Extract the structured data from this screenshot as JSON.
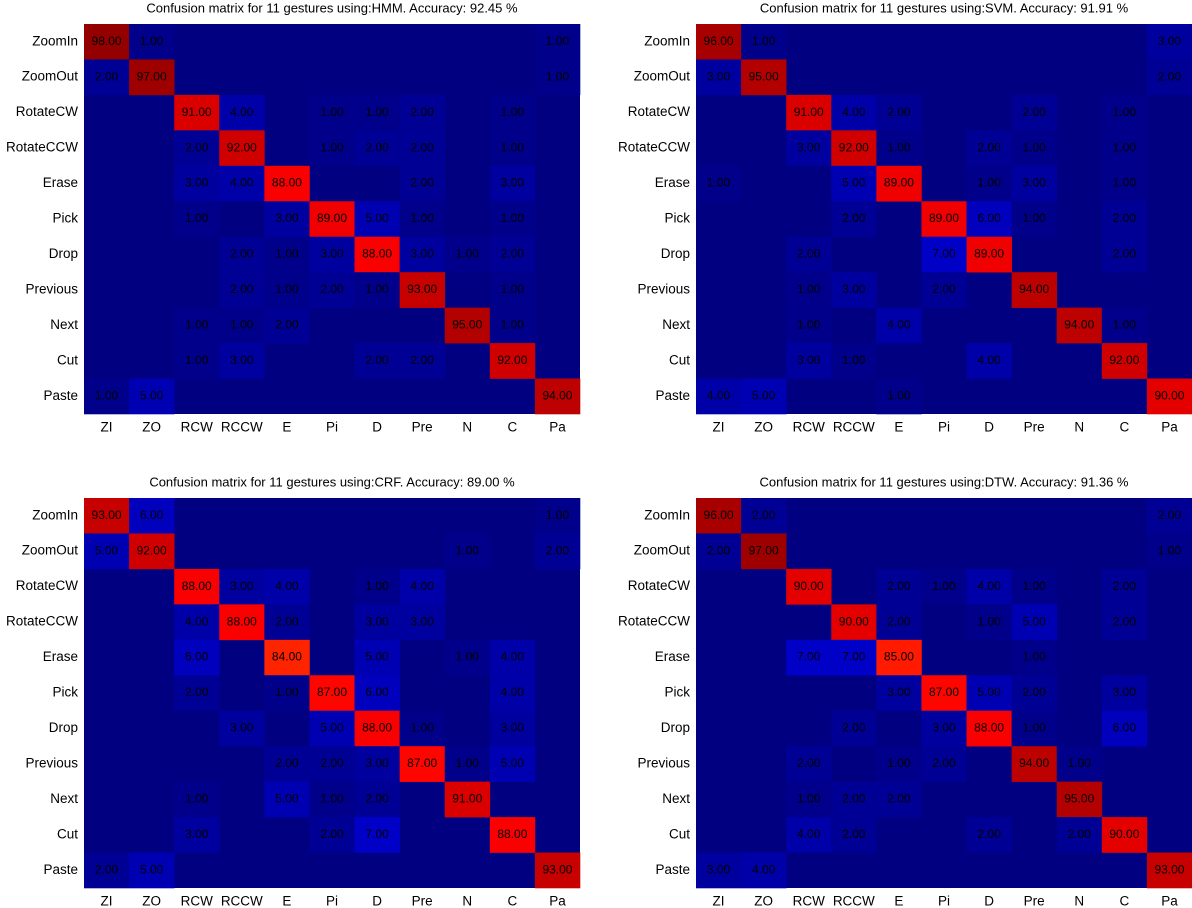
{
  "chart_data": [
    {
      "type": "heatmap",
      "title": "Confusion matrix for 11 gestures using:HMM. Accuracy: 92.45 %",
      "x_categories": [
        "ZI",
        "ZO",
        "RCW",
        "RCCW",
        "E",
        "Pi",
        "D",
        "Pre",
        "N",
        "C",
        "Pa"
      ],
      "y_categories": [
        "ZoomIn",
        "ZoomOut",
        "RotateCW",
        "RotateCCW",
        "Erase",
        "Pick",
        "Drop",
        "Previous",
        "Next",
        "Cut",
        "Paste"
      ],
      "colormap": "jet",
      "clim": [
        0,
        100
      ],
      "values": [
        [
          98,
          1,
          null,
          null,
          null,
          null,
          null,
          null,
          null,
          null,
          1
        ],
        [
          2,
          97,
          null,
          null,
          null,
          null,
          null,
          null,
          null,
          null,
          1
        ],
        [
          null,
          null,
          91,
          4,
          null,
          1,
          1,
          2,
          null,
          1,
          null
        ],
        [
          null,
          null,
          2,
          92,
          null,
          1,
          2,
          2,
          null,
          1,
          null
        ],
        [
          null,
          null,
          3,
          4,
          88,
          null,
          null,
          2,
          null,
          3,
          null
        ],
        [
          null,
          null,
          1,
          null,
          3,
          89,
          5,
          1,
          null,
          1,
          null
        ],
        [
          null,
          null,
          null,
          2,
          1,
          3,
          88,
          3,
          1,
          2,
          null
        ],
        [
          null,
          null,
          null,
          2,
          1,
          2,
          1,
          93,
          null,
          1,
          null
        ],
        [
          null,
          null,
          1,
          1,
          2,
          null,
          null,
          null,
          95,
          1,
          null
        ],
        [
          null,
          null,
          1,
          3,
          null,
          null,
          2,
          2,
          null,
          92,
          null
        ],
        [
          1,
          5,
          null,
          null,
          null,
          null,
          null,
          null,
          null,
          null,
          94
        ]
      ],
      "value_labels": [
        [
          "98.00",
          "1.00",
          null,
          null,
          null,
          null,
          null,
          null,
          null,
          null,
          "1.00"
        ],
        [
          "2.00",
          "97.00",
          null,
          null,
          null,
          null,
          null,
          null,
          null,
          null,
          "1.00"
        ],
        [
          null,
          null,
          "91.00",
          "4.00",
          null,
          "1.00",
          "1.00",
          "2.00",
          null,
          "1.00",
          null
        ],
        [
          null,
          null,
          "2.00",
          "92.00",
          null,
          "1.00",
          "2.00",
          "2.00",
          null,
          "1.00",
          null
        ],
        [
          null,
          null,
          "3.00",
          "4.00",
          "88.00",
          null,
          null,
          "2.00",
          null,
          "3.00",
          null
        ],
        [
          null,
          null,
          "1.00",
          null,
          "3.00",
          "89.00",
          "5.00",
          "1.00",
          null,
          "1.00",
          null
        ],
        [
          null,
          null,
          null,
          "2.00",
          "1.00",
          "3.00",
          "88.00",
          "3.00",
          "1.00",
          "2.00",
          null
        ],
        [
          null,
          null,
          null,
          "2.00",
          "1.00",
          "2.00",
          "1.00",
          "93.00",
          null,
          "1.00",
          null
        ],
        [
          null,
          null,
          "1.00",
          "1.00",
          "2.00",
          null,
          null,
          null,
          "95.00",
          "1.00",
          null
        ],
        [
          null,
          null,
          "1.00",
          "3.00",
          null,
          null,
          "2.00",
          "2.00",
          null,
          "92.00",
          null
        ],
        [
          "1.00",
          "5.00",
          null,
          null,
          null,
          null,
          null,
          null,
          null,
          null,
          "94.00"
        ]
      ]
    },
    {
      "type": "heatmap",
      "title": "Confusion matrix for 11 gestures using:SVM. Accuracy: 91.91 %",
      "x_categories": [
        "ZI",
        "ZO",
        "RCW",
        "RCCW",
        "E",
        "Pi",
        "D",
        "Pre",
        "N",
        "C",
        "Pa"
      ],
      "y_categories": [
        "ZoomIn",
        "ZoomOut",
        "RotateCW",
        "RotateCCW",
        "Erase",
        "Pick",
        "Drop",
        "Previous",
        "Next",
        "Cut",
        "Paste"
      ],
      "colormap": "jet",
      "clim": [
        0,
        100
      ],
      "values": [
        [
          96,
          1,
          null,
          null,
          null,
          null,
          null,
          null,
          null,
          null,
          3
        ],
        [
          3,
          95,
          null,
          null,
          null,
          null,
          null,
          null,
          null,
          null,
          2
        ],
        [
          null,
          null,
          91,
          4,
          2,
          null,
          null,
          2,
          null,
          1,
          null
        ],
        [
          null,
          null,
          3,
          92,
          1,
          null,
          2,
          1,
          null,
          1,
          null
        ],
        [
          1,
          null,
          null,
          5,
          89,
          null,
          1,
          3,
          null,
          1,
          null
        ],
        [
          null,
          null,
          null,
          2,
          null,
          89,
          6,
          1,
          null,
          2,
          null
        ],
        [
          null,
          null,
          2,
          null,
          null,
          7,
          89,
          null,
          null,
          2,
          null
        ],
        [
          null,
          null,
          1,
          3,
          null,
          2,
          null,
          94,
          null,
          null,
          null
        ],
        [
          null,
          null,
          1,
          null,
          4,
          null,
          null,
          null,
          94,
          1,
          null
        ],
        [
          null,
          null,
          3,
          1,
          null,
          null,
          4,
          null,
          null,
          92,
          null
        ],
        [
          4,
          5,
          null,
          null,
          1,
          null,
          null,
          null,
          null,
          null,
          90
        ]
      ],
      "value_labels": [
        [
          "96.00",
          "1.00",
          null,
          null,
          null,
          null,
          null,
          null,
          null,
          null,
          "3.00"
        ],
        [
          "3.00",
          "95.00",
          null,
          null,
          null,
          null,
          null,
          null,
          null,
          null,
          "2.00"
        ],
        [
          null,
          null,
          "91.00",
          "4.00",
          "2.00",
          null,
          null,
          "2.00",
          null,
          "1.00",
          null
        ],
        [
          null,
          null,
          "3.00",
          "92.00",
          "1.00",
          null,
          "2.00",
          "1.00",
          null,
          "1.00",
          null
        ],
        [
          "1.00",
          null,
          null,
          "5.00",
          "89.00",
          null,
          "1.00",
          "3.00",
          null,
          "1.00",
          null
        ],
        [
          null,
          null,
          null,
          "2.00",
          null,
          "89.00",
          "6.00",
          "1.00",
          null,
          "2.00",
          null
        ],
        [
          null,
          null,
          "2.00",
          null,
          null,
          "7.00",
          "89.00",
          null,
          null,
          "2.00",
          null
        ],
        [
          null,
          null,
          "1.00",
          "3.00",
          null,
          "2.00",
          null,
          "94.00",
          null,
          null,
          null
        ],
        [
          null,
          null,
          "1.00",
          null,
          "4.00",
          null,
          null,
          null,
          "94.00",
          "1.00",
          null
        ],
        [
          null,
          null,
          "3.00",
          "1.00",
          null,
          null,
          "4.00",
          null,
          null,
          "92.00",
          null
        ],
        [
          "4.00",
          "5.00",
          null,
          null,
          "1.00",
          null,
          null,
          null,
          null,
          null,
          "90.00"
        ]
      ]
    },
    {
      "type": "heatmap",
      "title": "Confusion matrix for 11 gestures using:CRF. Accuracy: 89.00 %",
      "x_categories": [
        "ZI",
        "ZO",
        "RCW",
        "RCCW",
        "E",
        "Pi",
        "D",
        "Pre",
        "N",
        "C",
        "Pa"
      ],
      "y_categories": [
        "ZoomIn",
        "ZoomOut",
        "RotateCW",
        "RotateCCW",
        "Erase",
        "Pick",
        "Drop",
        "Previous",
        "Next",
        "Cut",
        "Paste"
      ],
      "colormap": "jet",
      "clim": [
        0,
        100
      ],
      "values": [
        [
          93,
          6,
          null,
          null,
          null,
          null,
          null,
          null,
          null,
          null,
          1
        ],
        [
          5,
          92,
          null,
          null,
          null,
          null,
          null,
          null,
          1,
          null,
          2
        ],
        [
          null,
          null,
          88,
          3,
          4,
          null,
          1,
          4,
          null,
          null,
          null
        ],
        [
          null,
          null,
          4,
          88,
          2,
          null,
          3,
          3,
          null,
          null,
          null
        ],
        [
          null,
          null,
          6,
          null,
          84,
          null,
          5,
          null,
          1,
          4,
          null
        ],
        [
          null,
          null,
          2,
          null,
          1,
          87,
          6,
          null,
          null,
          4,
          null
        ],
        [
          null,
          null,
          null,
          3,
          null,
          5,
          88,
          1,
          null,
          3,
          null
        ],
        [
          null,
          null,
          null,
          null,
          2,
          2,
          3,
          87,
          1,
          5,
          null
        ],
        [
          null,
          null,
          1,
          null,
          5,
          1,
          2,
          null,
          91,
          null,
          null
        ],
        [
          null,
          null,
          3,
          null,
          null,
          2,
          7,
          null,
          null,
          88,
          null
        ],
        [
          2,
          5,
          null,
          null,
          null,
          null,
          null,
          null,
          null,
          null,
          93
        ]
      ],
      "value_labels": [
        [
          "93.00",
          "6.00",
          null,
          null,
          null,
          null,
          null,
          null,
          null,
          null,
          "1.00"
        ],
        [
          "5.00",
          "92.00",
          null,
          null,
          null,
          null,
          null,
          null,
          "1.00",
          null,
          "2.00"
        ],
        [
          null,
          null,
          "88.00",
          "3.00",
          "4.00",
          null,
          "1.00",
          "4.00",
          null,
          null,
          null
        ],
        [
          null,
          null,
          "4.00",
          "88.00",
          "2.00",
          null,
          "3.00",
          "3.00",
          null,
          null,
          null
        ],
        [
          null,
          null,
          "6.00",
          null,
          "84.00",
          null,
          "5.00",
          null,
          "1.00",
          "4.00",
          null
        ],
        [
          null,
          null,
          "2.00",
          null,
          "1.00",
          "87.00",
          "6.00",
          null,
          null,
          "4.00",
          null
        ],
        [
          null,
          null,
          null,
          "3.00",
          null,
          "5.00",
          "88.00",
          "1.00",
          null,
          "3.00",
          null
        ],
        [
          null,
          null,
          null,
          null,
          "2.00",
          "2.00",
          "3.00",
          "87.00",
          "1.00",
          "5.00",
          null
        ],
        [
          null,
          null,
          "1.00",
          null,
          "5.00",
          "1.00",
          "2.00",
          null,
          "91.00",
          null,
          null
        ],
        [
          null,
          null,
          "3.00",
          null,
          null,
          "2.00",
          "7.00",
          null,
          null,
          "88.00",
          null
        ],
        [
          "2.00",
          "5.00",
          null,
          null,
          null,
          null,
          null,
          null,
          null,
          null,
          "93.00"
        ]
      ]
    },
    {
      "type": "heatmap",
      "title": "Confusion matrix for 11 gestures using:DTW. Accuracy: 91.36 %",
      "x_categories": [
        "ZI",
        "ZO",
        "RCW",
        "RCCW",
        "E",
        "Pi",
        "D",
        "Pre",
        "N",
        "C",
        "Pa"
      ],
      "y_categories": [
        "ZoomIn",
        "ZoomOut",
        "RotateCW",
        "RotateCCW",
        "Erase",
        "Pick",
        "Drop",
        "Previous",
        "Next",
        "Cut",
        "Paste"
      ],
      "colormap": "jet",
      "clim": [
        0,
        100
      ],
      "values": [
        [
          96,
          2,
          null,
          null,
          null,
          null,
          null,
          null,
          null,
          null,
          2
        ],
        [
          2,
          97,
          null,
          null,
          null,
          null,
          null,
          null,
          null,
          null,
          1
        ],
        [
          null,
          null,
          90,
          null,
          2,
          1,
          4,
          1,
          null,
          2,
          null
        ],
        [
          null,
          null,
          null,
          90,
          2,
          null,
          1,
          5,
          null,
          2,
          null
        ],
        [
          null,
          null,
          7,
          7,
          85,
          null,
          null,
          1,
          null,
          null,
          null
        ],
        [
          null,
          null,
          null,
          null,
          3,
          87,
          5,
          2,
          null,
          3,
          null
        ],
        [
          null,
          null,
          null,
          2,
          null,
          3,
          88,
          1,
          null,
          6,
          null
        ],
        [
          null,
          null,
          2,
          null,
          1,
          2,
          null,
          94,
          1,
          null,
          null
        ],
        [
          null,
          null,
          1,
          2,
          2,
          null,
          null,
          null,
          95,
          null,
          null
        ],
        [
          null,
          null,
          4,
          2,
          null,
          null,
          2,
          null,
          2,
          90,
          null
        ],
        [
          3,
          4,
          null,
          null,
          null,
          null,
          null,
          null,
          null,
          null,
          93
        ]
      ],
      "value_labels": [
        [
          "96.00",
          "2.00",
          null,
          null,
          null,
          null,
          null,
          null,
          null,
          null,
          "2.00"
        ],
        [
          "2.00",
          "97.00",
          null,
          null,
          null,
          null,
          null,
          null,
          null,
          null,
          "1.00"
        ],
        [
          null,
          null,
          "90.00",
          null,
          "2.00",
          "1.00",
          "4.00",
          "1.00",
          null,
          "2.00",
          null
        ],
        [
          null,
          null,
          null,
          "90.00",
          "2.00",
          null,
          "1.00",
          "5.00",
          null,
          "2.00",
          null
        ],
        [
          null,
          null,
          "7.00",
          "7.00",
          "85.00",
          null,
          null,
          "1.00",
          null,
          null,
          null
        ],
        [
          null,
          null,
          null,
          null,
          "3.00",
          "87.00",
          "5.00",
          "2.00",
          null,
          "3.00",
          null
        ],
        [
          null,
          null,
          null,
          "2.00",
          null,
          "3.00",
          "88.00",
          "1.00",
          null,
          "6.00",
          null
        ],
        [
          null,
          null,
          "2.00",
          null,
          "1.00",
          "2.00",
          null,
          "94.00",
          "1.00",
          null,
          null
        ],
        [
          null,
          null,
          "1.00",
          "2.00",
          "2.00",
          null,
          null,
          null,
          "95.00",
          null,
          null
        ],
        [
          null,
          null,
          "4.00",
          "2.00",
          null,
          null,
          "2.00",
          null,
          "2.00",
          "90.00",
          null
        ],
        [
          "3.00",
          "4.00",
          null,
          null,
          null,
          null,
          null,
          null,
          null,
          null,
          "93.00"
        ]
      ]
    }
  ]
}
